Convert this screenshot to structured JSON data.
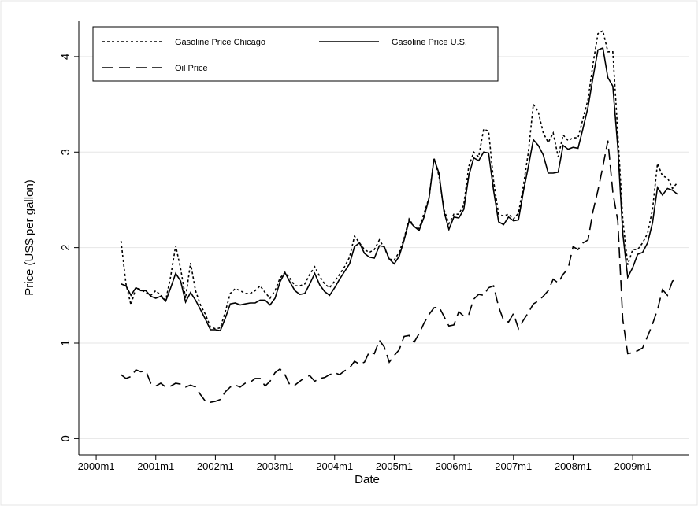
{
  "chart_data": {
    "type": "line",
    "xlabel": "Date",
    "ylabel": "Price (US$ per gallon)",
    "x": [
      485,
      486,
      487,
      488,
      489,
      490,
      491,
      492,
      493,
      494,
      495,
      496,
      497,
      498,
      499,
      500,
      501,
      502,
      503,
      504,
      505,
      506,
      507,
      508,
      509,
      510,
      511,
      512,
      513,
      514,
      515,
      516,
      517,
      518,
      519,
      520,
      521,
      522,
      523,
      524,
      525,
      526,
      527,
      528,
      529,
      530,
      531,
      532,
      533,
      534,
      535,
      536,
      537,
      538,
      539,
      540,
      541,
      542,
      543,
      544,
      545,
      546,
      547,
      548,
      549,
      550,
      551,
      552,
      553,
      554,
      555,
      556,
      557,
      558,
      559,
      560,
      561,
      562,
      563,
      564,
      565,
      566,
      567,
      568,
      569,
      570,
      571,
      572,
      573,
      574,
      575,
      576,
      577,
      578,
      579,
      580,
      581,
      582,
      583,
      584,
      585,
      586,
      587,
      588,
      589,
      590,
      591,
      592,
      593,
      594,
      595,
      596,
      597
    ],
    "series": [
      {
        "name": "Gasoline Price Chicago",
        "color": "#000000",
        "line_style": "dotted",
        "values": [
          2.07,
          1.62,
          1.4,
          1.58,
          1.56,
          1.53,
          1.5,
          1.55,
          1.5,
          1.45,
          1.7,
          2.02,
          1.78,
          1.47,
          1.84,
          1.55,
          1.4,
          1.3,
          1.17,
          1.15,
          1.16,
          1.33,
          1.52,
          1.57,
          1.55,
          1.52,
          1.52,
          1.55,
          1.6,
          1.53,
          1.47,
          1.55,
          1.68,
          1.74,
          1.68,
          1.6,
          1.6,
          1.62,
          1.72,
          1.8,
          1.7,
          1.62,
          1.58,
          1.65,
          1.72,
          1.8,
          1.9,
          2.12,
          2.05,
          1.98,
          1.95,
          1.98,
          2.08,
          2.0,
          1.88,
          1.87,
          1.95,
          2.1,
          2.3,
          2.22,
          2.2,
          2.36,
          2.52,
          2.94,
          2.75,
          2.4,
          2.25,
          2.35,
          2.35,
          2.45,
          2.85,
          3.0,
          2.95,
          3.24,
          3.22,
          2.7,
          2.35,
          2.33,
          2.35,
          2.3,
          2.36,
          2.65,
          3.0,
          3.5,
          3.42,
          3.2,
          3.1,
          3.2,
          2.95,
          3.18,
          3.12,
          3.15,
          3.15,
          3.35,
          3.55,
          3.92,
          4.24,
          4.27,
          4.05,
          4.05,
          3.2,
          2.3,
          1.82,
          1.98,
          1.98,
          2.05,
          2.15,
          2.4,
          2.88,
          2.75,
          2.73,
          2.62,
          2.68
        ]
      },
      {
        "name": "Gasoline Price U.S.",
        "color": "#000000",
        "line_style": "solid",
        "values": [
          1.62,
          1.6,
          1.5,
          1.58,
          1.55,
          1.55,
          1.49,
          1.47,
          1.49,
          1.44,
          1.58,
          1.73,
          1.65,
          1.43,
          1.53,
          1.45,
          1.35,
          1.25,
          1.14,
          1.14,
          1.13,
          1.26,
          1.41,
          1.42,
          1.4,
          1.41,
          1.42,
          1.42,
          1.45,
          1.45,
          1.4,
          1.47,
          1.64,
          1.74,
          1.64,
          1.55,
          1.51,
          1.52,
          1.62,
          1.73,
          1.61,
          1.54,
          1.5,
          1.58,
          1.67,
          1.75,
          1.83,
          2.01,
          2.05,
          1.94,
          1.9,
          1.89,
          2.02,
          2.01,
          1.88,
          1.83,
          1.91,
          2.08,
          2.28,
          2.22,
          2.18,
          2.32,
          2.52,
          2.93,
          2.78,
          2.38,
          2.19,
          2.32,
          2.31,
          2.4,
          2.75,
          2.94,
          2.91,
          3.0,
          2.99,
          2.6,
          2.27,
          2.24,
          2.32,
          2.28,
          2.29,
          2.59,
          2.85,
          3.13,
          3.07,
          2.97,
          2.78,
          2.78,
          2.79,
          3.07,
          3.03,
          3.05,
          3.04,
          3.25,
          3.47,
          3.78,
          4.07,
          4.09,
          3.78,
          3.69,
          3.05,
          2.15,
          1.69,
          1.79,
          1.93,
          1.95,
          2.05,
          2.26,
          2.63,
          2.55,
          2.62,
          2.6,
          2.56
        ]
      },
      {
        "name": "Oil Price",
        "color": "#000000",
        "line_style": "dashed",
        "values": [
          0.67,
          0.63,
          0.65,
          0.72,
          0.7,
          0.71,
          0.58,
          0.55,
          0.58,
          0.54,
          0.55,
          0.58,
          0.57,
          0.54,
          0.56,
          0.54,
          0.46,
          0.39,
          0.38,
          0.39,
          0.41,
          0.49,
          0.54,
          0.56,
          0.54,
          0.58,
          0.59,
          0.63,
          0.63,
          0.55,
          0.6,
          0.69,
          0.73,
          0.67,
          0.56,
          0.56,
          0.6,
          0.64,
          0.66,
          0.6,
          0.63,
          0.64,
          0.67,
          0.69,
          0.67,
          0.71,
          0.74,
          0.81,
          0.78,
          0.8,
          0.91,
          0.89,
          1.03,
          0.96,
          0.8,
          0.87,
          0.93,
          1.07,
          1.08,
          1.01,
          1.1,
          1.21,
          1.3,
          1.37,
          1.38,
          1.28,
          1.18,
          1.19,
          1.33,
          1.28,
          1.3,
          1.46,
          1.51,
          1.5,
          1.58,
          1.6,
          1.38,
          1.24,
          1.22,
          1.31,
          1.15,
          1.24,
          1.32,
          1.41,
          1.44,
          1.49,
          1.55,
          1.67,
          1.63,
          1.72,
          1.78,
          2.01,
          1.98,
          2.05,
          2.08,
          2.38,
          2.6,
          2.85,
          3.12,
          2.58,
          2.28,
          1.25,
          0.89,
          0.9,
          0.92,
          0.95,
          1.07,
          1.2,
          1.35,
          1.56,
          1.5,
          1.65,
          1.67
        ]
      }
    ],
    "xlim": [
      476.5,
      599.4
    ],
    "xticks": [
      {
        "value": 480,
        "label": "2000m1"
      },
      {
        "value": 492,
        "label": "2001m1"
      },
      {
        "value": 504,
        "label": "2002m1"
      },
      {
        "value": 516,
        "label": "2003m1"
      },
      {
        "value": 528,
        "label": "2004m1"
      },
      {
        "value": 540,
        "label": "2005m1"
      },
      {
        "value": 552,
        "label": "2006m1"
      },
      {
        "value": 564,
        "label": "2007m1"
      },
      {
        "value": 576,
        "label": "2008m1"
      },
      {
        "value": 588,
        "label": "2009m1"
      }
    ],
    "ylim": [
      -0.17,
      4.37
    ],
    "yticks": [
      0,
      1,
      2,
      3,
      4
    ],
    "grid": true
  }
}
